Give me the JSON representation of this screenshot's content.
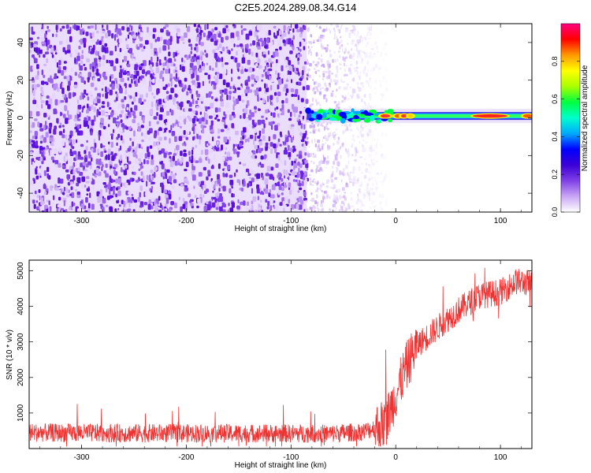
{
  "title": "C2E5.2024.289.08.34.G14",
  "chart_data": [
    {
      "type": "heatmap",
      "xlabel": "Height of straight line (km)",
      "ylabel": "Frequency (Hz)",
      "xlim": [
        -350,
        130
      ],
      "ylim": [
        -50,
        50
      ],
      "xticks": [
        -300,
        -200,
        -100,
        0,
        100
      ],
      "yticks": [
        -40,
        -20,
        0,
        20,
        40
      ],
      "colorbar": {
        "label": "Normalized spectral amplitude",
        "range": [
          0,
          1
        ],
        "ticks": [
          0.0,
          0.2,
          0.4,
          0.6,
          0.8
        ],
        "colors": [
          "#ffffff",
          "#c9a6f5",
          "#7f3fe6",
          "#3b00d6",
          "#0000ff",
          "#00aaff",
          "#00ffcc",
          "#00ff40",
          "#aaff00",
          "#ffff00",
          "#ff9900",
          "#ff0000",
          "#ff0080"
        ]
      },
      "features": {
        "noise_region_x": [
          -350,
          -85
        ],
        "fading_noise_x": [
          -85,
          -20
        ],
        "signal_line": {
          "x_start": -85,
          "x_end": 130,
          "frequency": 1
        }
      }
    },
    {
      "type": "line",
      "xlabel": "Height of straight line (km)",
      "ylabel": "SNR (10 * v/v)",
      "xlim": [
        -350,
        130
      ],
      "ylim": [
        0,
        5300
      ],
      "xticks": [
        -300,
        -200,
        -100,
        0,
        100
      ],
      "yticks": [
        1000,
        2000,
        3000,
        4000,
        5000
      ],
      "color": "#ee3333",
      "trend": {
        "x": [
          -350,
          -250,
          -150,
          -60,
          -30,
          -10,
          0,
          10,
          20,
          40,
          60,
          80,
          100,
          115,
          130
        ],
        "y": [
          450,
          430,
          430,
          420,
          480,
          700,
          1500,
          2300,
          2900,
          3400,
          3900,
          4300,
          4400,
          4700,
          4650
        ]
      }
    }
  ]
}
